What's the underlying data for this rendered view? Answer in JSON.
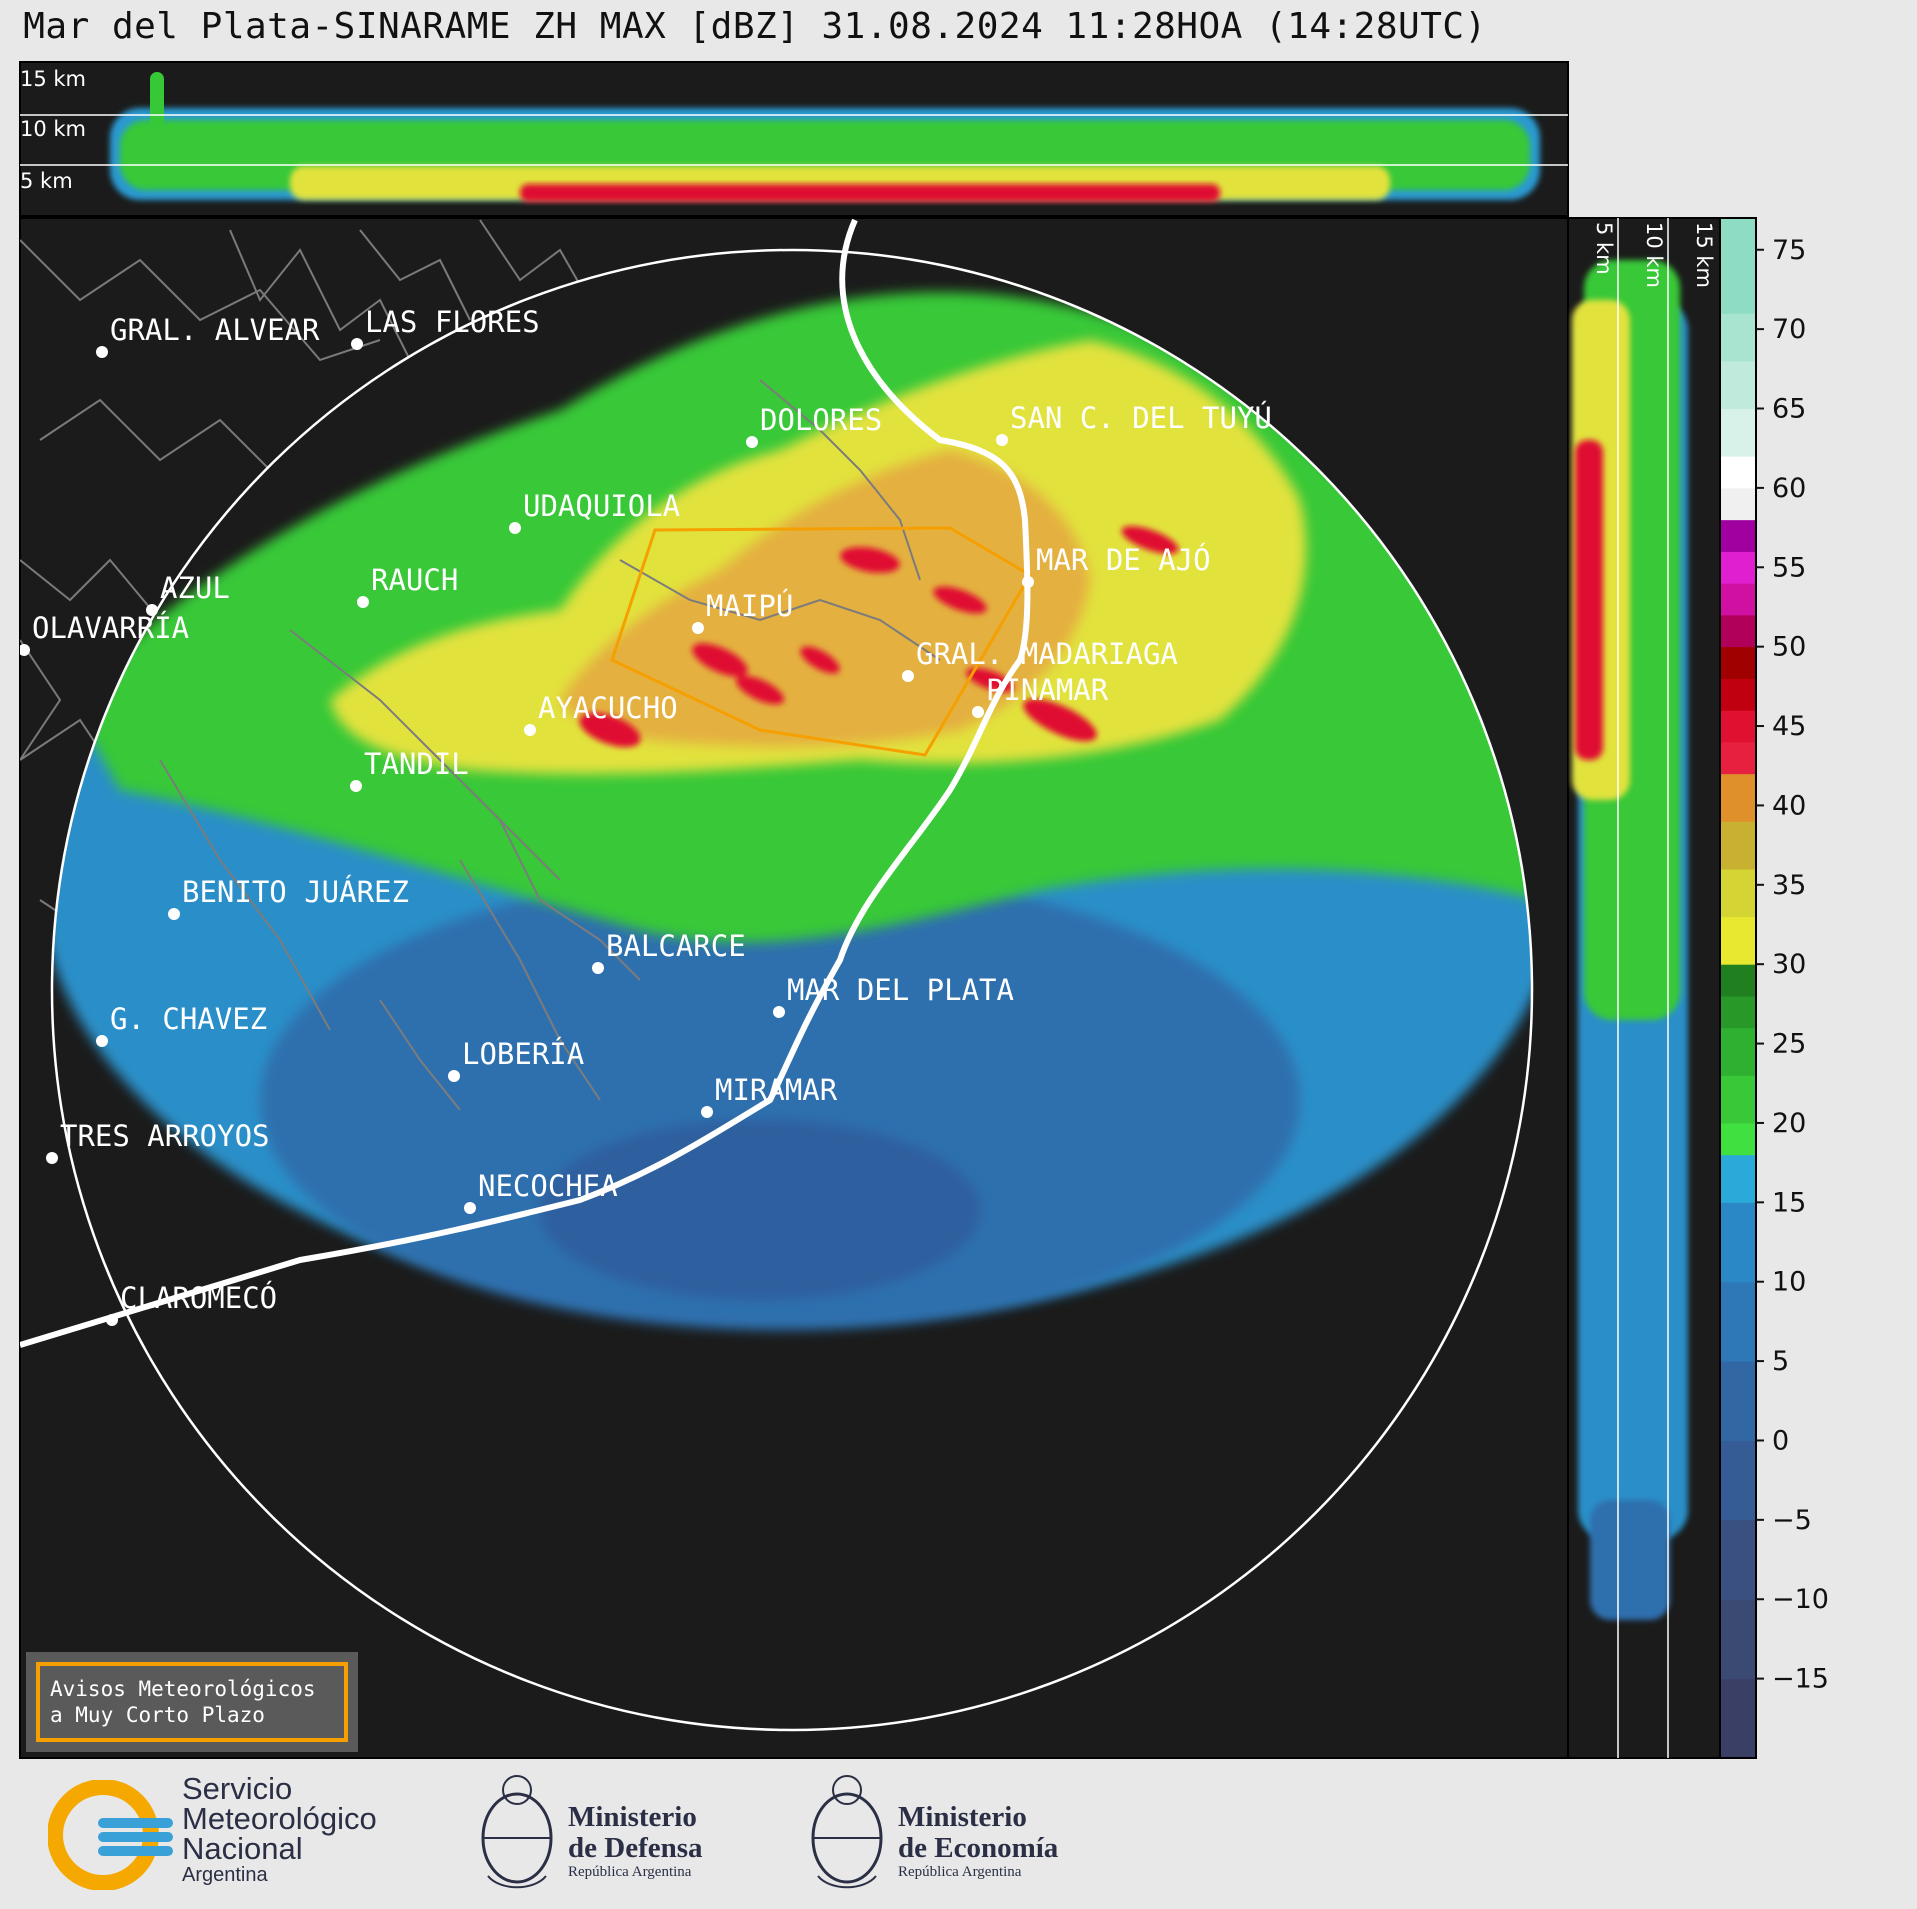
{
  "title": "Mar del Plata-SINARAME ZH MAX [dBZ] 31.08.2024 11:28HOA (14:28UTC)",
  "height_labels_top": [
    "15 km",
    "10 km",
    "5 km"
  ],
  "height_labels_side": [
    "5 km",
    "10 km",
    "15 km"
  ],
  "cities": [
    {
      "name": "GRAL. ALVEAR"
    },
    {
      "name": "LAS FLORES"
    },
    {
      "name": "DOLORES"
    },
    {
      "name": "SAN C. DEL TUYÚ"
    },
    {
      "name": "UDAQUIOLA"
    },
    {
      "name": "MAR DE AJÓ"
    },
    {
      "name": "AZUL"
    },
    {
      "name": "RAUCH"
    },
    {
      "name": "MAIPÚ"
    },
    {
      "name": "OLAVARRÍA"
    },
    {
      "name": "GRAL. MADARIAGA"
    },
    {
      "name": "PINAMAR"
    },
    {
      "name": "AYACUCHO"
    },
    {
      "name": "TANDIL"
    },
    {
      "name": "BENITO JUÁREZ"
    },
    {
      "name": "BALCARCE"
    },
    {
      "name": "MAR DEL PLATA"
    },
    {
      "name": "G. CHAVEZ"
    },
    {
      "name": "LOBERÍA"
    },
    {
      "name": "MIRAMAR"
    },
    {
      "name": "TRES ARROYOS"
    },
    {
      "name": "NECOCHEA"
    },
    {
      "name": "CLAROMECÓ"
    }
  ],
  "colorbar": {
    "ticks": [
      "75",
      "70",
      "65",
      "60",
      "55",
      "50",
      "45",
      "40",
      "35",
      "30",
      "25",
      "20",
      "15",
      "10",
      "5",
      "0",
      "−5",
      "−10",
      "−15"
    ],
    "colors": {
      "teal": "#8fdcc4",
      "white": "#ffffff",
      "magenta": "#e020d0",
      "red": "#e01030",
      "orange": "#e08a20",
      "yellow": "#e8e830",
      "green": "#30c030",
      "blue": "#2a9ad0",
      "navy": "#3a4a70"
    }
  },
  "aviso": {
    "line1": "Avisos Meteorológicos",
    "line2": "a Muy Corto Plazo"
  },
  "footer": {
    "smn": {
      "line1": "Servicio",
      "line2": "Meteorológico",
      "line3": "Nacional",
      "sub": "Argentina"
    },
    "defensa": {
      "line1": "Ministerio",
      "line2": "de Defensa",
      "sub": "República Argentina"
    },
    "economia": {
      "line1": "Ministerio",
      "line2": "de Economía",
      "sub": "República Argentina"
    }
  }
}
